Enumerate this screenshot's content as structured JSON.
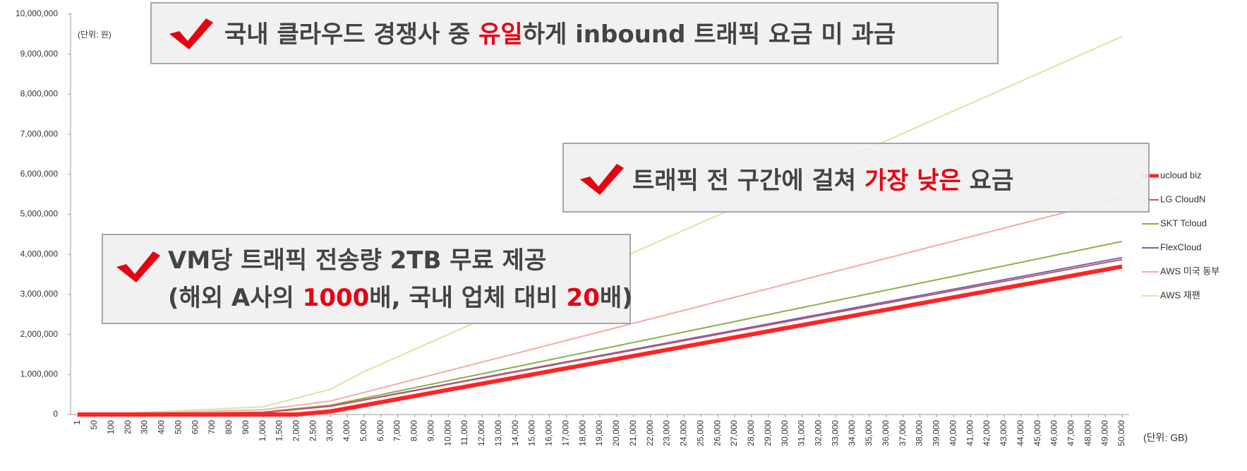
{
  "chart_data": {
    "type": "line",
    "y_unit_label": "(단위: 원)",
    "x_unit_label": "(단위: GB)",
    "categories": [
      "1",
      "50",
      "100",
      "200",
      "300",
      "400",
      "500",
      "600",
      "700",
      "800",
      "900",
      "1,000",
      "1,500",
      "2,000",
      "2,500",
      "3,000",
      "4,000",
      "5,000",
      "6,000",
      "7,000",
      "8,000",
      "9,000",
      "10,000",
      "11,000",
      "12,000",
      "13,000",
      "14,000",
      "15,000",
      "16,000",
      "17,000",
      "18,000",
      "19,000",
      "20,000",
      "21,000",
      "22,000",
      "23,000",
      "24,000",
      "25,000",
      "26,000",
      "27,000",
      "28,000",
      "29,000",
      "30,000",
      "31,000",
      "32,000",
      "33,000",
      "34,000",
      "35,000",
      "36,000",
      "37,000",
      "38,000",
      "39,000",
      "40,000",
      "41,000",
      "42,000",
      "43,000",
      "44,000",
      "45,000",
      "46,000",
      "47,000",
      "48,000",
      "49,000",
      "50,000"
    ],
    "series": [
      {
        "name": "ucloud biz",
        "color": "#ff2424",
        "width": 6,
        "values": [
          0,
          0,
          0,
          0,
          0,
          0,
          0,
          0,
          0,
          0,
          0,
          0,
          0,
          0,
          38500,
          77000,
          154000,
          231000,
          308000,
          385000,
          462000,
          539000,
          616000,
          693000,
          770000,
          847000,
          924000,
          1001000,
          1078000,
          1155000,
          1232000,
          1309000,
          1386000,
          1463000,
          1540000,
          1617000,
          1694000,
          1771000,
          1848000,
          1925000,
          2002000,
          2079000,
          2156000,
          2233000,
          2310000,
          2387000,
          2464000,
          2541000,
          2618000,
          2695000,
          2772000,
          2849000,
          2926000,
          3003000,
          3080000,
          3157000,
          3234000,
          3311000,
          3388000,
          3465000,
          3542000,
          3619000,
          3696000
        ]
      },
      {
        "name": "LG CloudN",
        "color": "#b9586a",
        "width": 2,
        "values": [
          50,
          2500,
          5000,
          10000,
          15000,
          20000,
          25000,
          30000,
          35000,
          40000,
          45000,
          50000,
          89000,
          128000,
          167000,
          206000,
          284000,
          362000,
          440000,
          518000,
          596000,
          674000,
          752000,
          830000,
          908000,
          986000,
          1064000,
          1142000,
          1220000,
          1298000,
          1376000,
          1454000,
          1532000,
          1610000,
          1688000,
          1766000,
          1844000,
          1922000,
          2000000,
          2078000,
          2156000,
          2234000,
          2312000,
          2390000,
          2468000,
          2546000,
          2624000,
          2702000,
          2780000,
          2858000,
          2936000,
          3014000,
          3092000,
          3170000,
          3248000,
          3326000,
          3404000,
          3482000,
          3560000,
          3638000,
          3716000,
          3794000,
          3872000
        ]
      },
      {
        "name": "SKT Tcloud",
        "color": "#8cb04a",
        "width": 2,
        "values": [
          60,
          3000,
          6000,
          12000,
          18000,
          24000,
          30000,
          36000,
          42000,
          48000,
          54000,
          60000,
          103500,
          147000,
          190500,
          234000,
          321000,
          408000,
          495000,
          582000,
          669000,
          756000,
          843000,
          930000,
          1017000,
          1104000,
          1191000,
          1278000,
          1365000,
          1452000,
          1539000,
          1626000,
          1713000,
          1800000,
          1887000,
          1974000,
          2061000,
          2148000,
          2235000,
          2322000,
          2409000,
          2496000,
          2583000,
          2670000,
          2757000,
          2844000,
          2931000,
          3018000,
          3105000,
          3192000,
          3279000,
          3366000,
          3453000,
          3540000,
          3627000,
          3714000,
          3801000,
          3888000,
          3975000,
          4062000,
          4149000,
          4236000,
          4323000
        ]
      },
      {
        "name": "FlexCloud",
        "color": "#7a62aa",
        "width": 2,
        "values": [
          50,
          2500,
          5000,
          10000,
          15000,
          20000,
          25000,
          30000,
          35000,
          40000,
          45000,
          50000,
          89500,
          129000,
          168500,
          208000,
          287000,
          366000,
          445000,
          524000,
          603000,
          682000,
          761000,
          840000,
          919000,
          998000,
          1077000,
          1156000,
          1235000,
          1314000,
          1393000,
          1472000,
          1551000,
          1630000,
          1709000,
          1788000,
          1867000,
          1946000,
          2025000,
          2104000,
          2183000,
          2262000,
          2341000,
          2420000,
          2499000,
          2578000,
          2657000,
          2736000,
          2815000,
          2894000,
          2973000,
          3052000,
          3131000,
          3210000,
          3289000,
          3368000,
          3447000,
          3526000,
          3605000,
          3684000,
          3763000,
          3842000,
          3921000
        ]
      },
      {
        "name": "AWS 미국 동부",
        "color": "#f4abab",
        "width": 2,
        "values": [
          120,
          6000,
          12000,
          24000,
          36000,
          48000,
          60000,
          72000,
          84000,
          96000,
          108000,
          120000,
          174000,
          228000,
          282000,
          336000,
          444000,
          552000,
          660000,
          768000,
          876000,
          984000,
          1092000,
          1200000,
          1308000,
          1416000,
          1524000,
          1632000,
          1740000,
          1848000,
          1956000,
          2064000,
          2172000,
          2280000,
          2388000,
          2496000,
          2604000,
          2712000,
          2820000,
          2928000,
          3036000,
          3144000,
          3252000,
          3360000,
          3468000,
          3576000,
          3684000,
          3792000,
          3900000,
          4008000,
          4116000,
          4224000,
          4332000,
          4440000,
          4548000,
          4656000,
          4764000,
          4872000,
          4980000,
          5088000,
          5196000,
          5304000,
          5412000
        ]
      },
      {
        "name": "AWS 재팬",
        "color": "#d5e8a2",
        "width": 2,
        "values": [
          190,
          9500,
          19000,
          38000,
          57000,
          76000,
          95000,
          114000,
          133000,
          152000,
          171000,
          190000,
          300000,
          410000,
          520000,
          630000,
          850000,
          1070000,
          1256000,
          1442000,
          1628000,
          1814000,
          2000000,
          2186000,
          2372000,
          2558000,
          2744000,
          2930000,
          3116000,
          3302000,
          3488000,
          3674000,
          3860000,
          4046000,
          4232000,
          4418000,
          4604000,
          4790000,
          4976000,
          5162000,
          5348000,
          5534000,
          5720000,
          5906000,
          6092000,
          6278000,
          6464000,
          6650000,
          6836000,
          7022000,
          7208000,
          7394000,
          7580000,
          7766000,
          7952000,
          8138000,
          8324000,
          8510000,
          8696000,
          8882000,
          9068000,
          9254000,
          9440000
        ]
      }
    ],
    "ylim": [
      0,
      10000000
    ],
    "yticks": [
      0,
      {
        "value": 1000000,
        "label": "1,000,000"
      },
      {
        "value": 2000000,
        "label": "2,000,000"
      },
      {
        "value": 3000000,
        "label": "3,000,000"
      },
      {
        "value": 4000000,
        "label": "4,000,000"
      },
      {
        "value": 5000000,
        "label": "5,000,000"
      },
      {
        "value": 6000000,
        "label": "6,000,000"
      },
      {
        "value": 7000000,
        "label": "7,000,000"
      },
      {
        "value": 8000000,
        "label": "8,000,000"
      },
      {
        "value": 9000000,
        "label": "9,000,000"
      },
      {
        "value": 10000000,
        "label": "10,000,000"
      }
    ],
    "grid": false,
    "legend": "right",
    "annotations": [
      {
        "lines": [
          [
            {
              "text": "국내 클라우드 경쟁사 중 "
            },
            {
              "text": "유일",
              "color": "#e60012"
            },
            {
              "text": "하게 inbound 트래픽 요금 미 과금"
            }
          ]
        ]
      },
      {
        "lines": [
          [
            {
              "text": "트래픽 전 구간에 걸쳐 "
            },
            {
              "text": "가장 낮은",
              "color": "#e60012"
            },
            {
              "text": " 요금"
            }
          ]
        ]
      },
      {
        "lines": [
          [
            {
              "text": "VM당 트래픽 전송량 2TB 무료 제공"
            }
          ],
          [
            {
              "text": "(해외 A사의 "
            },
            {
              "text": "1000",
              "color": "#e60012"
            },
            {
              "text": "배, 국내 업체 대비 "
            },
            {
              "text": "20",
              "color": "#e60012"
            },
            {
              "text": "배)"
            }
          ]
        ]
      }
    ]
  }
}
